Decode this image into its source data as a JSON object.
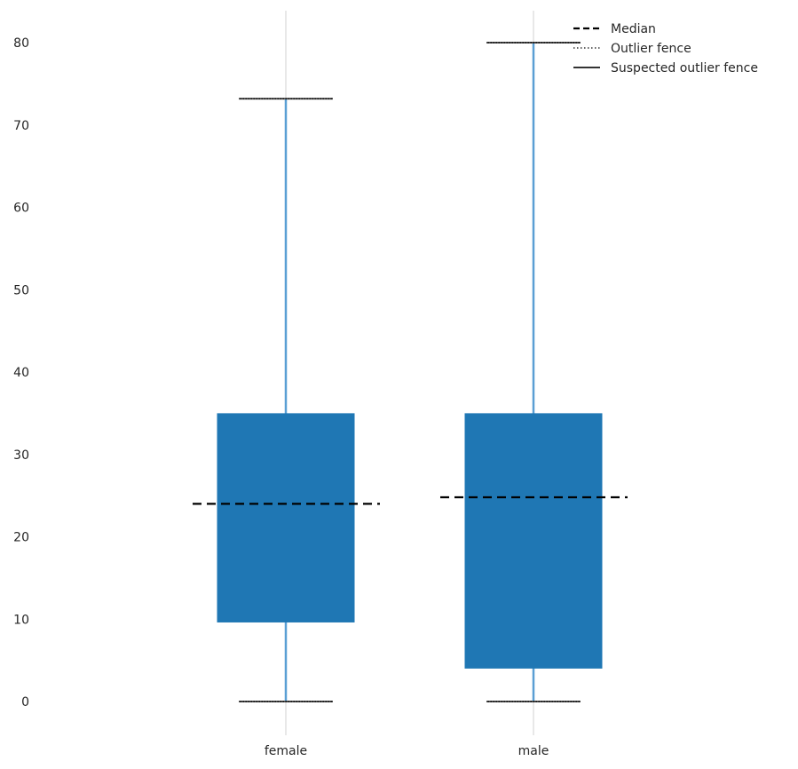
{
  "chart_data": {
    "type": "boxplot",
    "title": "",
    "xlabel": "",
    "ylabel": "",
    "ylim": [
      -4.5,
      84
    ],
    "yticks": [
      0,
      10,
      20,
      30,
      40,
      50,
      60,
      70,
      80
    ],
    "categories": [
      "female",
      "male"
    ],
    "boxes": [
      {
        "name": "female",
        "lower_fence": 0,
        "q1": 9.6,
        "median": 24,
        "q3": 35,
        "upper_fence": 73.2
      },
      {
        "name": "male",
        "lower_fence": 0,
        "q1": 4.0,
        "median": 24.8,
        "q3": 35,
        "upper_fence": 80
      }
    ],
    "legend": {
      "placement": "top-right",
      "entries": [
        {
          "label": "Median",
          "style": "dashed"
        },
        {
          "label": "Outlier fence",
          "style": "dotted"
        },
        {
          "label": "Suspected outlier fence",
          "style": "solid"
        }
      ]
    },
    "colors": {
      "box": "#1f77b4",
      "whisker": "#5a9fd4",
      "grid": "#d9d9d9",
      "median": "#000000"
    }
  }
}
